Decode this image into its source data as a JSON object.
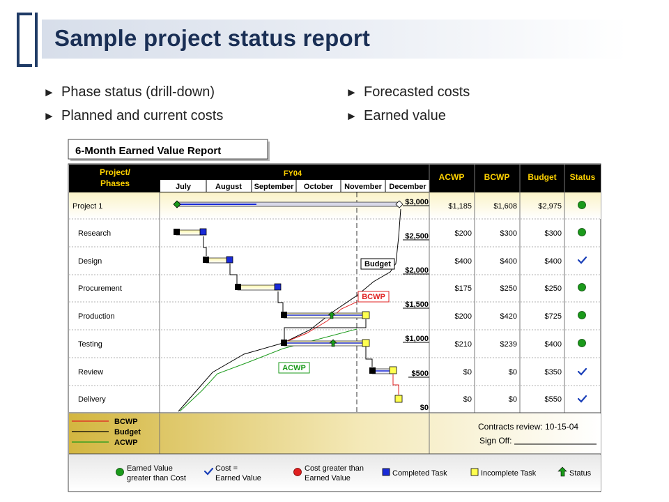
{
  "slide": {
    "title": "Sample project status report",
    "bullets_left": [
      "Phase status (drill-down)",
      "Planned and current costs"
    ],
    "bullets_right": [
      "Forecasted costs",
      "Earned value"
    ],
    "bullet_glyph": "►"
  },
  "report": {
    "title": "6-Month Earned Value Report",
    "header": {
      "project_label_line1": "Project/",
      "project_label_line2": "Phases",
      "fiscal_year": "FY04",
      "months": [
        "July",
        "August",
        "September",
        "October",
        "November",
        "December"
      ],
      "columns": [
        "ACWP",
        "BCWP",
        "Budget",
        "Status"
      ]
    },
    "rows": [
      {
        "name": "Project 1",
        "acwp": "$1,185",
        "bcwp": "$1,608",
        "budget": "$2,975",
        "status": "green-circle"
      },
      {
        "name": "Research",
        "acwp": "$200",
        "bcwp": "$300",
        "budget": "$300",
        "status": "green-circle"
      },
      {
        "name": "Design",
        "acwp": "$400",
        "bcwp": "$400",
        "budget": "$400",
        "status": "blue-check"
      },
      {
        "name": "Procurement",
        "acwp": "$175",
        "bcwp": "$250",
        "budget": "$250",
        "status": "green-circle"
      },
      {
        "name": "Production",
        "acwp": "$200",
        "bcwp": "$420",
        "budget": "$725",
        "status": "green-circle"
      },
      {
        "name": "Testing",
        "acwp": "$210",
        "bcwp": "$239",
        "budget": "$400",
        "status": "green-circle"
      },
      {
        "name": "Review",
        "acwp": "$0",
        "bcwp": "$0",
        "budget": "$350",
        "status": "blue-check"
      },
      {
        "name": "Delivery",
        "acwp": "$0",
        "bcwp": "$0",
        "budget": "$550",
        "status": "blue-check"
      }
    ],
    "axis_labels": [
      "$3,000",
      "$2,500",
      "$2,000",
      "$1,500",
      "$1,000",
      "$500",
      "$0"
    ],
    "line_labels": {
      "budget": "Budget",
      "bcwp": "BCWP",
      "acwp": "ACWP"
    },
    "line_legend": [
      "BCWP",
      "Budget",
      "ACWP"
    ],
    "contracts_review": "Contracts review: 10-15-04",
    "sign_off": "Sign Off:",
    "legend": {
      "earned_value_greater_line1": "Earned Value",
      "earned_value_greater_line2": "greater than Cost",
      "cost_equal_line1": "Cost =",
      "cost_equal_line2": "Earned Value",
      "cost_greater_line1": "Cost greater than",
      "cost_greater_line2": "Earned Value",
      "completed_task": "Completed Task",
      "incomplete_task": "Incomplete Task",
      "status": "Status"
    },
    "colors": {
      "header_bg": "#000000",
      "header_text": "#ffd200",
      "bcwp_line": "#e02020",
      "budget_line": "#000000",
      "acwp_line": "#1a9a1a",
      "completed_task": "#1a2bd8",
      "incomplete_task": "#ffff50",
      "status_green": "#1a9a1a",
      "cost_greater_red": "#e02020"
    }
  }
}
